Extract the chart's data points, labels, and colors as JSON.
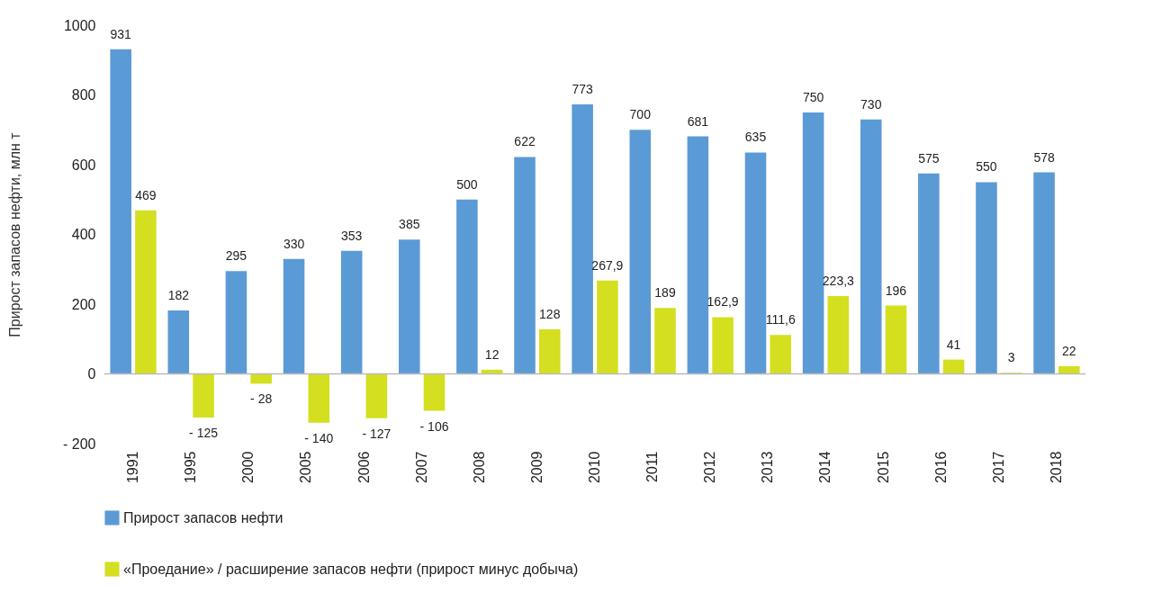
{
  "chart_data": {
    "type": "bar",
    "ylabel": "Прирост запасов нефти, млн т",
    "categories": [
      "1991",
      "1995",
      "2000",
      "2005",
      "2006",
      "2007",
      "2008",
      "2009",
      "2010",
      "2011",
      "2012",
      "2013",
      "2014",
      "2015",
      "2016",
      "2017",
      "2018"
    ],
    "series": [
      {
        "name": "Прирост запасов нефти",
        "color": "#5b9bd5",
        "values": [
          931,
          182,
          295,
          330,
          353,
          385,
          500,
          622,
          773,
          700,
          681,
          635,
          750,
          730,
          575,
          550,
          578
        ],
        "value_labels": [
          "931",
          "182",
          "295",
          "330",
          "353",
          "385",
          "500",
          "622",
          "773",
          "700",
          "681",
          "635",
          "750",
          "730",
          "575",
          "550",
          "578"
        ]
      },
      {
        "name": "«Проедание» / расширение запасов нефти (прирост минус добыча)",
        "color": "#d4df1f",
        "values": [
          469,
          -125,
          -28,
          -140,
          -127,
          -106,
          12,
          128,
          267.9,
          189,
          162.9,
          111.6,
          223.3,
          196,
          41,
          3,
          22
        ],
        "value_labels": [
          "469",
          "- 125",
          "- 28",
          "- 140",
          "- 127",
          "- 106",
          "12",
          "128",
          "267,9",
          "189",
          "162,9",
          "111,6",
          "223,3",
          "196",
          "41",
          "3",
          "22"
        ]
      }
    ],
    "ylim": [
      -200,
      1000
    ],
    "yticks": [
      {
        "value": -200,
        "label": "- 200"
      },
      0,
      200,
      400,
      600,
      800,
      1000
    ],
    "legend": "bottom"
  }
}
